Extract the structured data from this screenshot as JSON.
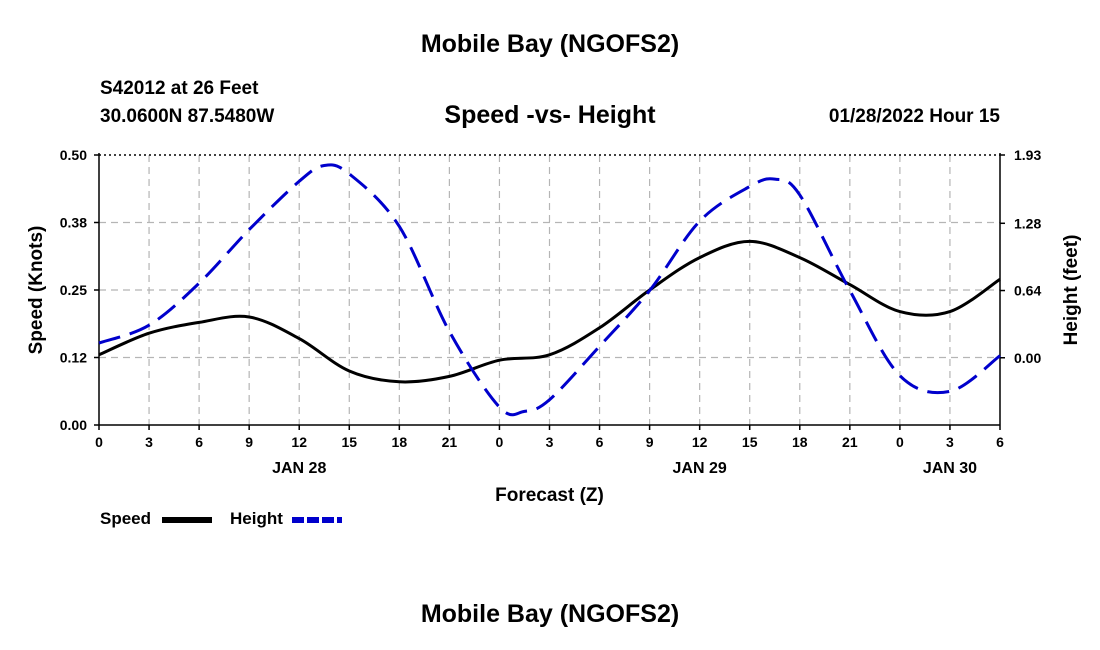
{
  "header": {
    "title": "Mobile Bay (NGOFS2)",
    "station": "S42012 at 26 Feet",
    "coordinates": "30.0600N  87.5480W",
    "subtitle": "Speed -vs- Height",
    "datetime": "01/28/2022 Hour 15",
    "footer_title": "Mobile Bay (NGOFS2)"
  },
  "legend": {
    "speed_label": "Speed",
    "height_label": "Height"
  },
  "chart_data": {
    "type": "line",
    "title": "Speed -vs- Height",
    "xlabel": "Forecast (Z)",
    "ylabel": "Speed (Knots)",
    "y2label": "Height (feet)",
    "x_ticks": [
      "0",
      "3",
      "6",
      "9",
      "12",
      "15",
      "18",
      "21",
      "0",
      "3",
      "6",
      "9",
      "12",
      "15",
      "18",
      "21",
      "0",
      "3",
      "6"
    ],
    "x_date_labels": [
      {
        "label": "JAN 28",
        "hour_index": 12
      },
      {
        "label": "JAN 29",
        "hour_index": 36
      },
      {
        "label": "JAN 30",
        "hour_index": 51
      }
    ],
    "xlim": [
      0,
      54
    ],
    "ylim": [
      0,
      0.5
    ],
    "y_ticks": [
      "0.00",
      "0.12",
      "0.25",
      "0.38",
      "0.50"
    ],
    "y2lim": [
      -0.64,
      1.93
    ],
    "y2_ticks": [
      "0.00",
      "0.64",
      "1.28",
      "1.93"
    ],
    "grid": true,
    "legend_position": "bottom-left",
    "series": [
      {
        "name": "Speed",
        "axis": "left",
        "color": "#000000",
        "style": "solid",
        "x": [
          0,
          3,
          6,
          9,
          12,
          15,
          18,
          21,
          24,
          27,
          30,
          33,
          36,
          39,
          42,
          45,
          48,
          51,
          54
        ],
        "values": [
          0.13,
          0.17,
          0.19,
          0.2,
          0.16,
          0.1,
          0.08,
          0.09,
          0.12,
          0.13,
          0.18,
          0.25,
          0.31,
          0.34,
          0.31,
          0.26,
          0.21,
          0.21,
          0.27
        ]
      },
      {
        "name": "Height",
        "axis": "right",
        "color": "#0000cc",
        "style": "dashed",
        "x": [
          0,
          3,
          6,
          9,
          12,
          13.5,
          15,
          18,
          21,
          24,
          25.5,
          27,
          30,
          33,
          36,
          39,
          40.5,
          42,
          45,
          48,
          51,
          54
        ],
        "values": [
          0.14,
          0.31,
          0.71,
          1.22,
          1.68,
          1.83,
          1.75,
          1.25,
          0.25,
          -0.47,
          -0.51,
          -0.4,
          0.11,
          0.64,
          1.3,
          1.63,
          1.7,
          1.55,
          0.64,
          -0.17,
          -0.32,
          0.02
        ]
      }
    ]
  }
}
